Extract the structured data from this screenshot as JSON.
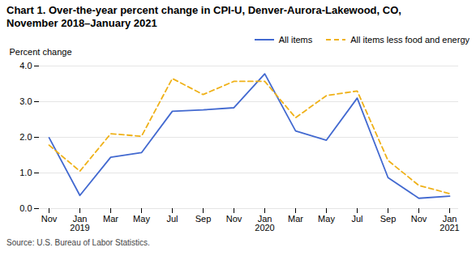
{
  "chart_data": {
    "type": "line",
    "title": "Chart 1. Over-the-year percent change in CPI-U, Denver-Aurora-Lakewood, CO,\nNovember 2018–January 2021",
    "ylabel": "Percent change",
    "caption": "Source: U.S. Bureau of Labor Statistics.",
    "categories": [
      "Nov",
      "Jan\n2019",
      "Mar",
      "May",
      "Jul",
      "Sep",
      "Nov",
      "Jan\n2020",
      "Mar",
      "May",
      "Jul",
      "Sep",
      "Nov",
      "Jan\n2021"
    ],
    "series": [
      {
        "name": "All items",
        "line_style": "solid",
        "values": [
          1.99,
          0.37,
          1.44,
          1.57,
          2.73,
          2.77,
          2.83,
          3.78,
          2.18,
          1.92,
          3.1,
          0.87,
          0.29,
          0.35
        ]
      },
      {
        "name": "All items less food and energy",
        "line_style": "dashed",
        "values": [
          1.78,
          1.05,
          2.1,
          2.03,
          3.65,
          3.2,
          3.57,
          3.57,
          2.55,
          3.17,
          3.3,
          1.35,
          0.65,
          0.42
        ]
      }
    ],
    "ylim": [
      0.0,
      4.0
    ],
    "yticks": [
      {
        "value": 0,
        "label": "0.0"
      },
      {
        "value": 1,
        "label": "1.0"
      },
      {
        "value": 2,
        "label": "2.0"
      },
      {
        "value": 3,
        "label": "3.0"
      },
      {
        "value": 4,
        "label": "4.0"
      }
    ],
    "grid": true,
    "legend": "upper right"
  }
}
